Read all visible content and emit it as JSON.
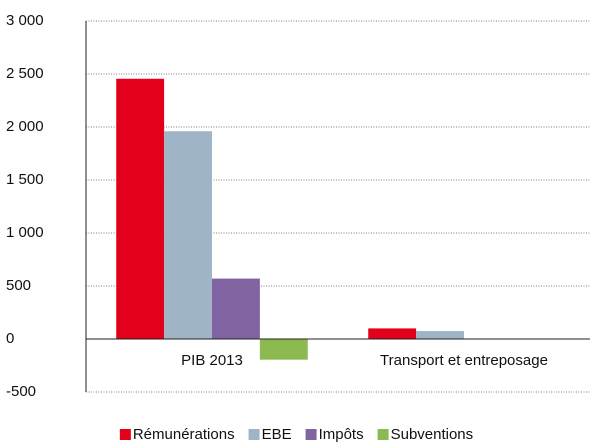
{
  "chart_data": {
    "type": "bar",
    "categories": [
      "PIB 2013",
      "Transport et entreposage"
    ],
    "series": [
      {
        "name": "Rémunérations",
        "color": "#e2001a",
        "values": [
          2455,
          100
        ]
      },
      {
        "name": "EBE",
        "color": "#9fb4c7",
        "values": [
          1960,
          75
        ]
      },
      {
        "name": "Impôts",
        "color": "#8064a2",
        "values": [
          570,
          3
        ]
      },
      {
        "name": "Subventions",
        "color": "#8cb950",
        "values": [
          -195,
          -2
        ]
      }
    ],
    "ylim": [
      -500,
      3000
    ],
    "yticks": [
      {
        "value": 3000,
        "label": "3 000"
      },
      {
        "value": 2500,
        "label": "2 500"
      },
      {
        "value": 2000,
        "label": "2 000"
      },
      {
        "value": 1500,
        "label": "1 500"
      },
      {
        "value": 1000,
        "label": "1 000"
      },
      500,
      0,
      -500
    ],
    "grid": true
  }
}
